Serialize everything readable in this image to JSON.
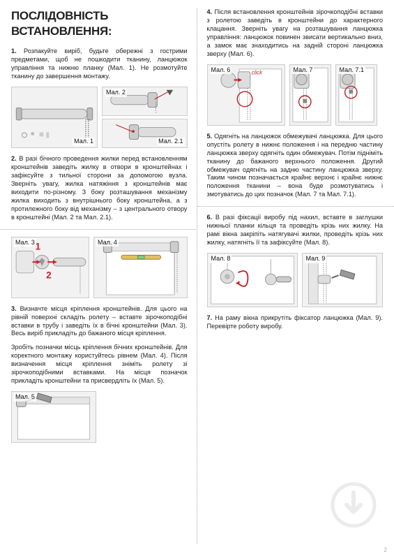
{
  "title": "ПОСЛІДОВНІСТЬ ВСТАНОВЛЕННЯ:",
  "pageNumber": "2",
  "left": {
    "step1": "<b>1.</b> Розпакуйте виріб, будьте обережні з гострими предметами, щоб не пошкодити тканину, ланцюжок управління та нижню планку (Мал. 1). Не розмотуйте тканину до завершення монтажу.",
    "step2": "<b>2.</b> В разі бічного проведення жилки перед встановленням кронштейнів заведіть жилку в отвори в кронштейнах і зафіксуйте з тильної сторони за допомогою вузла. Зверніть увагу, жилка натяжіння з кронштейнів має виходити по-різному. З боку розташування механізму жилка виходить з внутрішнього боку кронштейна, а з протилежного боку від механізму – з центрального отвору в кронштейні (Мал. 2 та Мал. 2.1).",
    "step3a": "<b>3.</b> Визначте місця кріплення кронштейнів. Для цього на рівній поверхні складіть ролету – вставте зірочкоподібні вставки в трубу і заведіть їх в бічні кронштейни (Мал. 3). Весь виріб прикладіть до бажаного місця кріплення.",
    "step3b": "Зробіть позначки місць кріплення бічних кронштейнів. Для коректного монтажу користуйтесь рівнем (Мал. 4). Після визначення місця кріплення зніміть ролету зі зірочкоподібними вставками. На місця позначок прикладіть кронштейни та присвердліть їх (Мал. 5)."
  },
  "right": {
    "step4": "<b>4.</b> Після встановлення кронштейнів зірочкоподібні вставки з ролетою заведіть в кронштейни до характерного клацання. Зверніть увагу на розташування ланцюжка управління: ланцюжок повинен звисати вертикально вниз, а замок має знаходитись на задній стороні ланцюжка зверху (Мал. 6).",
    "step5": "<b>5.</b> Одягніть на ланцюжок обмежувачі ланцюжка. Для цього опустіть ролету в нижнє положення і на передню частину ланцюжка зверху одягніть один обмежувач. Потім підніміть тканину до бажаного верхнього положення. Другий обмежувач одягніть на задню частину ланцюжка зверху. Таким чином позначається крайнє верхнє і крайнє нижнє положення тканини – вона буде розмотуватись і змотуватись до цих позначок (Мал. 7 та Мал. 7.1).",
    "step6": "<b>6.</b> В разі фіксації виробу під нахил, вставте в заглушки нижньої планки кільця та проведіть крізь них жилку. На рамі вікна закріпіть натягувачі жилки, проведіть крізь них жилку, натягніть її та зафіксуйте (Мал. 8).",
    "step7": "<b>7.</b> На раму вікна прикрутіть фіксатор ланцюжка (Мал. 9). Перевірте роботу виробу."
  },
  "figs": {
    "f1": "Мал. 1",
    "f2": "Мал. 2",
    "f21": "Мал. 2.1",
    "f3": "Мал. 3",
    "f4": "Мал. 4",
    "f5": "Мал. 5",
    "f6": "Мал. 6",
    "f7": "Мал. 7",
    "f71": "Мал. 7.1",
    "f8": "Мал. 8",
    "f9": "Мал. 9",
    "click": "click"
  },
  "colors": {
    "accent": "#c1272d",
    "figBg": "#f2f2f2",
    "figBorder": "#cccccc",
    "divider": "#aaaaaa",
    "text": "#222222"
  }
}
